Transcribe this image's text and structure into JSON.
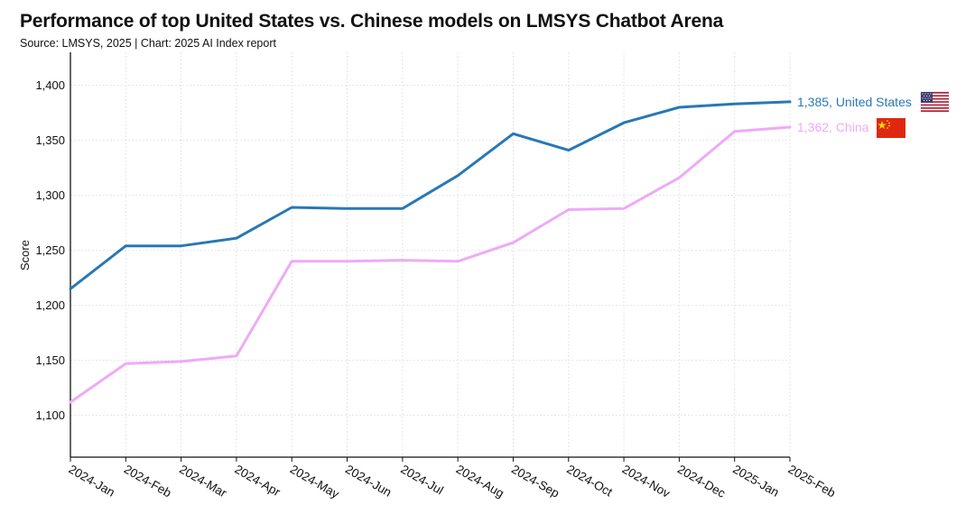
{
  "chart_data": {
    "type": "line",
    "title": "Performance of top United States vs. Chinese models on LMSYS Chatbot Arena",
    "subtitle": "Source: LMSYS, 2025 | Chart: 2025 AI Index report",
    "xlabel": "",
    "ylabel": "Score",
    "categories": [
      "2024-Jan",
      "2024-Feb",
      "2024-Mar",
      "2024-Apr",
      "2024-May",
      "2024-Jun",
      "2024-Jul",
      "2024-Aug",
      "2024-Sep",
      "2024-Oct",
      "2024-Nov",
      "2024-Dec",
      "2025-Jan",
      "2025-Feb"
    ],
    "ylim": [
      1062,
      1430
    ],
    "yticks": [
      1100,
      1150,
      1200,
      1250,
      1300,
      1350,
      1400
    ],
    "ytick_labels": [
      "1,100",
      "1,150",
      "1,200",
      "1,250",
      "1,300",
      "1,350",
      "1,400"
    ],
    "grid": true,
    "series": [
      {
        "name": "United States",
        "color": "#2878b5",
        "values": [
          1215,
          1254,
          1254,
          1261,
          1289,
          1288,
          1288,
          1318,
          1356,
          1341,
          1366,
          1380,
          1383,
          1385
        ],
        "end_label": "1,385, United States",
        "icon": "us-flag-icon"
      },
      {
        "name": "China",
        "color": "#eeaaf7",
        "values": [
          1112,
          1147,
          1149,
          1154,
          1240,
          1240,
          1241,
          1240,
          1257,
          1287,
          1288,
          1316,
          1358,
          1362
        ],
        "end_label": "1,362, China",
        "icon": "china-flag-icon"
      }
    ]
  }
}
